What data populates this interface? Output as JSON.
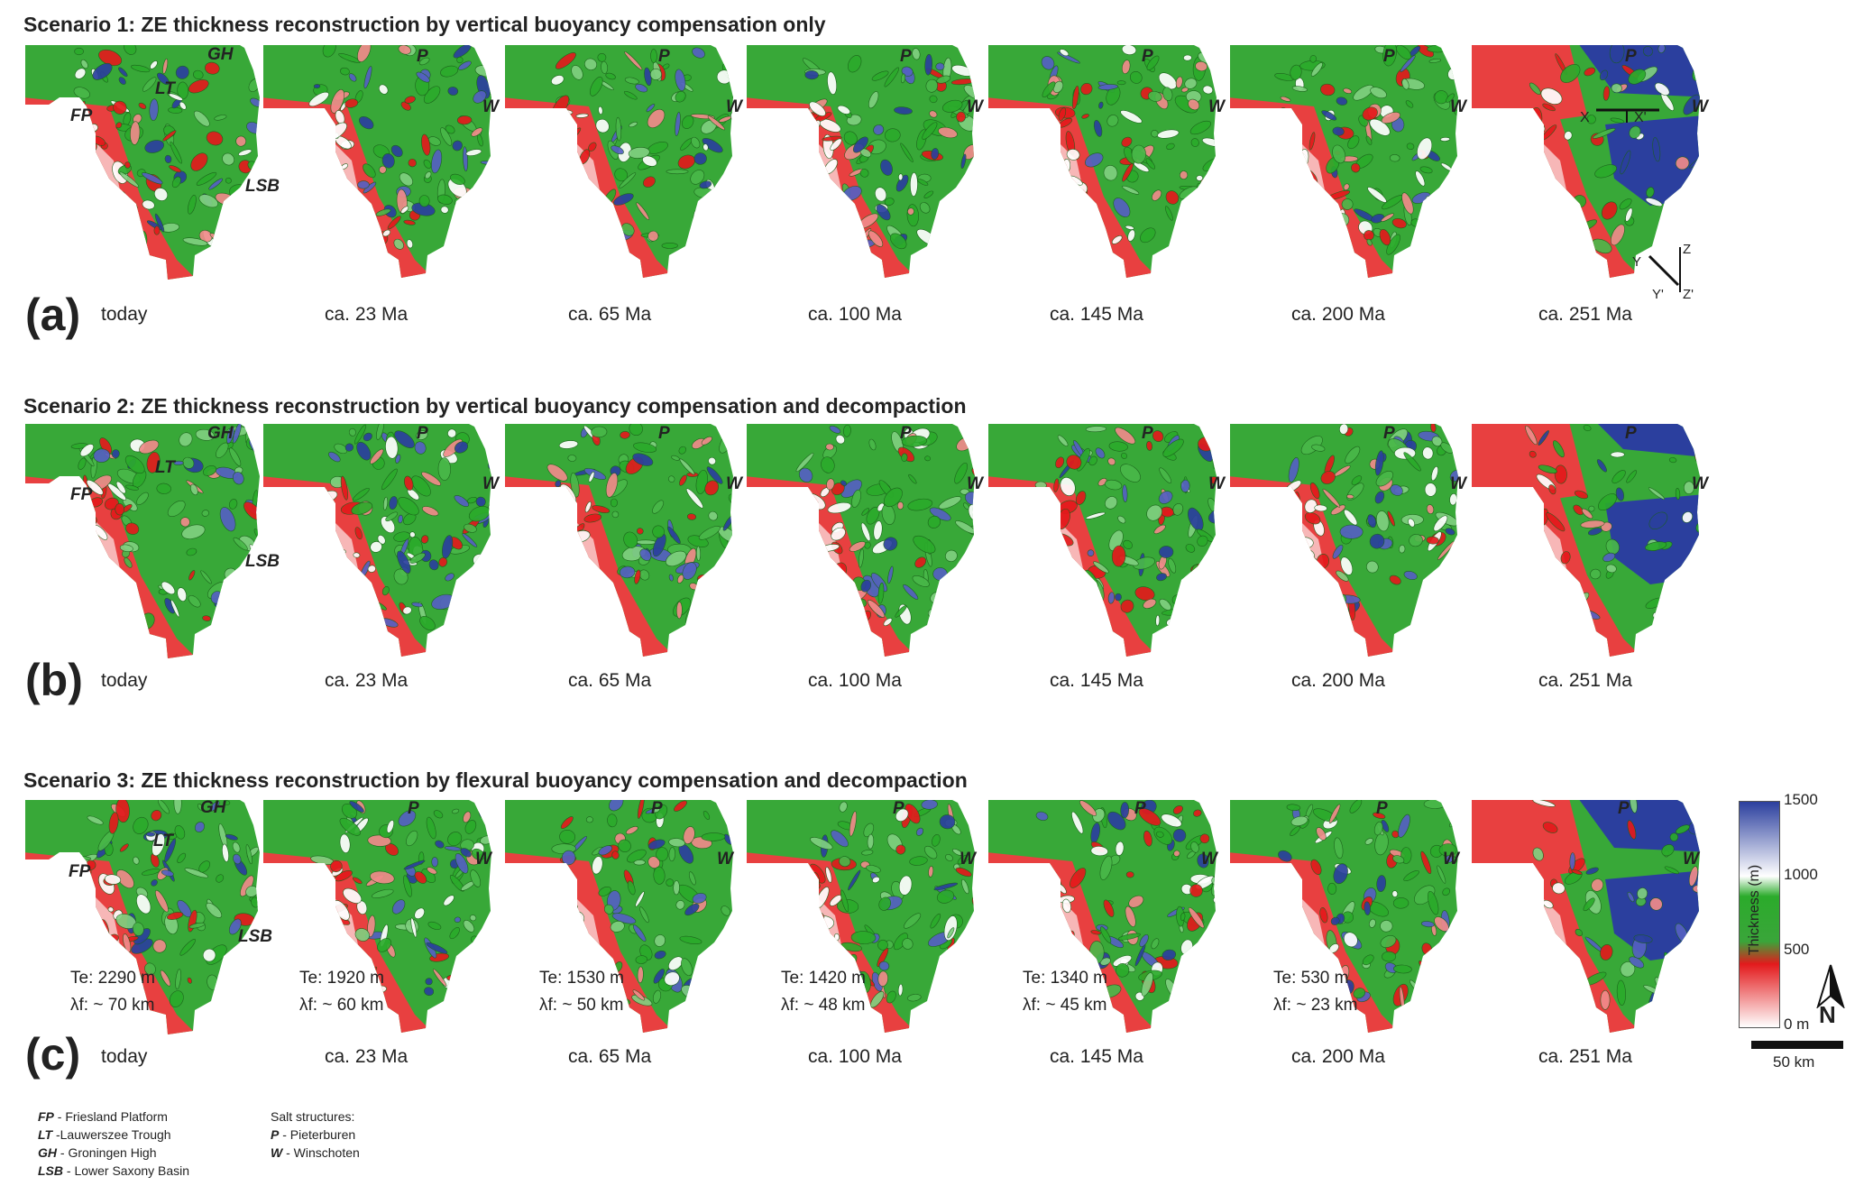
{
  "scenarios": [
    {
      "title": "Scenario 1: ZE thickness reconstruction by vertical buoyancy compensation only",
      "panel": "(a)",
      "times": [
        "today",
        "ca. 23 Ma",
        "ca. 65 Ma",
        "ca. 100 Ma",
        "ca. 145 Ma",
        "ca. 200 Ma",
        "ca. 251 Ma"
      ]
    },
    {
      "title": "Scenario 2: ZE thickness reconstruction by vertical buoyancy compensation and decompaction",
      "panel": "(b)",
      "times": [
        "today",
        "ca. 23 Ma",
        "ca. 65 Ma",
        "ca. 100 Ma",
        "ca. 145 Ma",
        "ca. 200 Ma",
        "ca. 251 Ma"
      ]
    },
    {
      "title": "Scenario 3: ZE thickness reconstruction by flexural buoyancy compensation and decompaction",
      "panel": "(c)",
      "times": [
        "today",
        "ca. 23 Ma",
        "ca. 65 Ma",
        "ca. 100 Ma",
        "ca. 145 Ma",
        "ca. 200 Ma",
        "ca. 251 Ma"
      ],
      "flexure": [
        {
          "te": "Te: 2290 m",
          "lf": "λf: ~ 70 km"
        },
        {
          "te": "Te: 1920 m",
          "lf": "λf: ~ 60 km"
        },
        {
          "te": "Te: 1530 m",
          "lf": "λf: ~ 50 km"
        },
        {
          "te": "Te: 1420 m",
          "lf": "λf: ~ 48 km"
        },
        {
          "te": "Te: 1340 m",
          "lf": "λf: ~ 45 km"
        },
        {
          "te": "Te: 530 m",
          "lf": "λf: ~ 23 km"
        }
      ]
    }
  ],
  "map_labels": {
    "gh": "GH",
    "lt": "LT",
    "fp": "FP",
    "lsb": "LSB",
    "p": "P",
    "w": "W",
    "x": "X",
    "x_prime": "X'",
    "y": "Y",
    "y_prime": "Y'",
    "z": "Z",
    "z_prime": "Z'"
  },
  "colorbar": {
    "title": "Thickness (m)",
    "ticks": [
      "1500",
      "1000",
      "500",
      "0 m"
    ],
    "colors": {
      "high": "#2b3f9e",
      "mid_high": "#ffffff",
      "mid": "#2bab2b",
      "low_mid": "#e31a1c",
      "low": "#ffffff"
    }
  },
  "north_label": "N",
  "scale_label": "50 km",
  "legend": {
    "regions": [
      {
        "abbr": "FP",
        "name": " - Friesland Platform"
      },
      {
        "abbr": "LT",
        "name": " -Lauwerszee Trough"
      },
      {
        "abbr": "GH",
        "name": " - Groningen High"
      },
      {
        "abbr": "LSB",
        "name": " - Lower Saxony Basin"
      }
    ],
    "salt_title": "Salt structures:",
    "salt": [
      {
        "abbr": "P",
        "name": " - Pieterburen"
      },
      {
        "abbr": "W",
        "name": " - Winschoten"
      }
    ]
  }
}
